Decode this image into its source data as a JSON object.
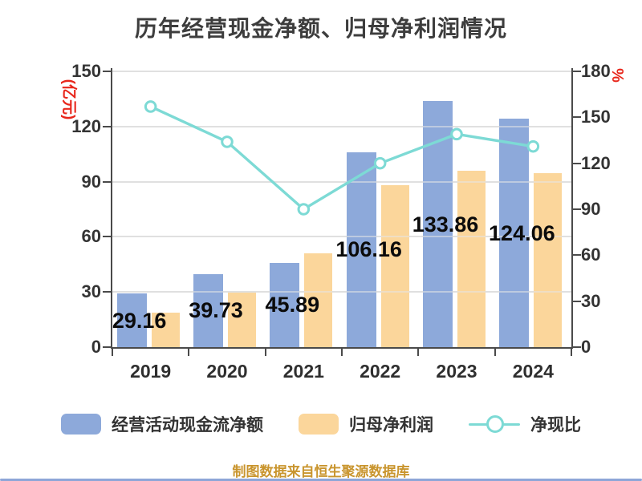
{
  "title": "历年经营现金净额、归母净利润情况",
  "left_axis": {
    "unit": "(亿元)",
    "unit_color": "#E8271C",
    "ticks": [
      "0",
      "30",
      "60",
      "90",
      "120",
      "150"
    ]
  },
  "right_axis": {
    "unit": "%",
    "unit_color": "#E8271C",
    "ticks": [
      "0",
      "30",
      "60",
      "90",
      "120",
      "150",
      "180"
    ]
  },
  "legend": {
    "items": [
      {
        "label": "经营活动现金流净额",
        "color": "#8DA9DA",
        "marker": "square"
      },
      {
        "label": "归母净利润",
        "color": "#FBD69B",
        "marker": "square"
      },
      {
        "label": "净现比",
        "color": "#7DDAD5",
        "marker": "line-circle"
      }
    ]
  },
  "footer": {
    "text": "制图数据来自恒生聚源数据库",
    "color": "#C9952E"
  },
  "colors": {
    "bar_cashflow": "#8DA9DA",
    "bar_profit": "#FBD69B",
    "ratio_line": "#7DDAD5",
    "axis": "#4a4a4a",
    "grid": "#d6d6d6",
    "value_label": "#0b0b0b",
    "unit_label": "#E8271C"
  },
  "chart_data": {
    "type": "bar",
    "title": "历年经营现金净额、归母净利润情况",
    "categories": [
      "2019",
      "2020",
      "2021",
      "2022",
      "2023",
      "2024"
    ],
    "series": [
      {
        "name": "经营活动现金流净额",
        "type": "bar",
        "axis": "left",
        "unit": "亿元",
        "color": "#8DA9DA",
        "values": [
          29.16,
          39.73,
          45.89,
          106.16,
          133.86,
          124.06
        ],
        "labels": [
          "29.16",
          "39.73",
          "45.89",
          "106.16",
          "133.86",
          "124.06"
        ]
      },
      {
        "name": "归母净利润",
        "type": "bar",
        "axis": "left",
        "unit": "亿元",
        "color": "#FBD69B",
        "values": [
          18.6,
          29.6,
          51.0,
          88.1,
          96.1,
          94.5
        ]
      },
      {
        "name": "净现比",
        "type": "line",
        "axis": "right",
        "unit": "%",
        "color": "#7DDAD5",
        "values": [
          157,
          134,
          90,
          120,
          139,
          131
        ]
      }
    ],
    "left_ylim": [
      0,
      150
    ],
    "right_ylim": [
      0,
      180
    ],
    "grid": true,
    "legend_position": "bottom"
  }
}
